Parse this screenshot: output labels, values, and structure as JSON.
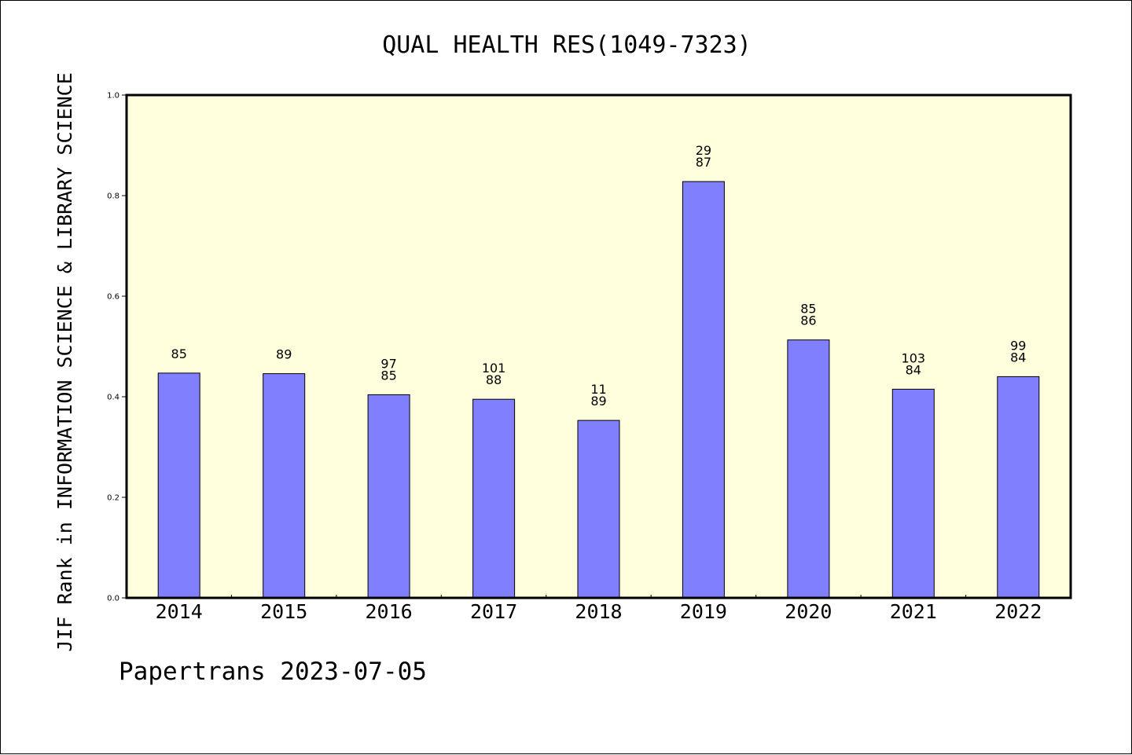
{
  "chart_data": {
    "type": "bar",
    "title": "QUAL HEALTH RES(1049-7323)",
    "ylabel": "JIF Rank in INFORMATION SCIENCE & LIBRARY SCIENCE",
    "xlabel": "",
    "categories": [
      "2014",
      "2015",
      "2016",
      "2017",
      "2018",
      "2019",
      "2020",
      "2021",
      "2022"
    ],
    "values": [
      0.447,
      0.446,
      0.404,
      0.395,
      0.353,
      0.828,
      0.513,
      0.415,
      0.44
    ],
    "bar_labels": [
      [
        "85"
      ],
      [
        "89"
      ],
      [
        "97",
        "85"
      ],
      [
        "101",
        "88"
      ],
      [
        "11",
        "89"
      ],
      [
        "29",
        "87"
      ],
      [
        "85",
        "86"
      ],
      [
        "103",
        "84"
      ],
      [
        "99",
        "84"
      ]
    ],
    "ylim": [
      0,
      1.0
    ],
    "yticks": [
      "0.0",
      "0.2",
      "0.4",
      "0.6",
      "0.8",
      "1.0"
    ],
    "grid": false,
    "legend": "none",
    "colors": {
      "bar": "#8080ff",
      "plot_background": "#ffffdd",
      "axes": "#000000"
    }
  },
  "footer": {
    "text": "Papertrans 2023-07-05"
  }
}
